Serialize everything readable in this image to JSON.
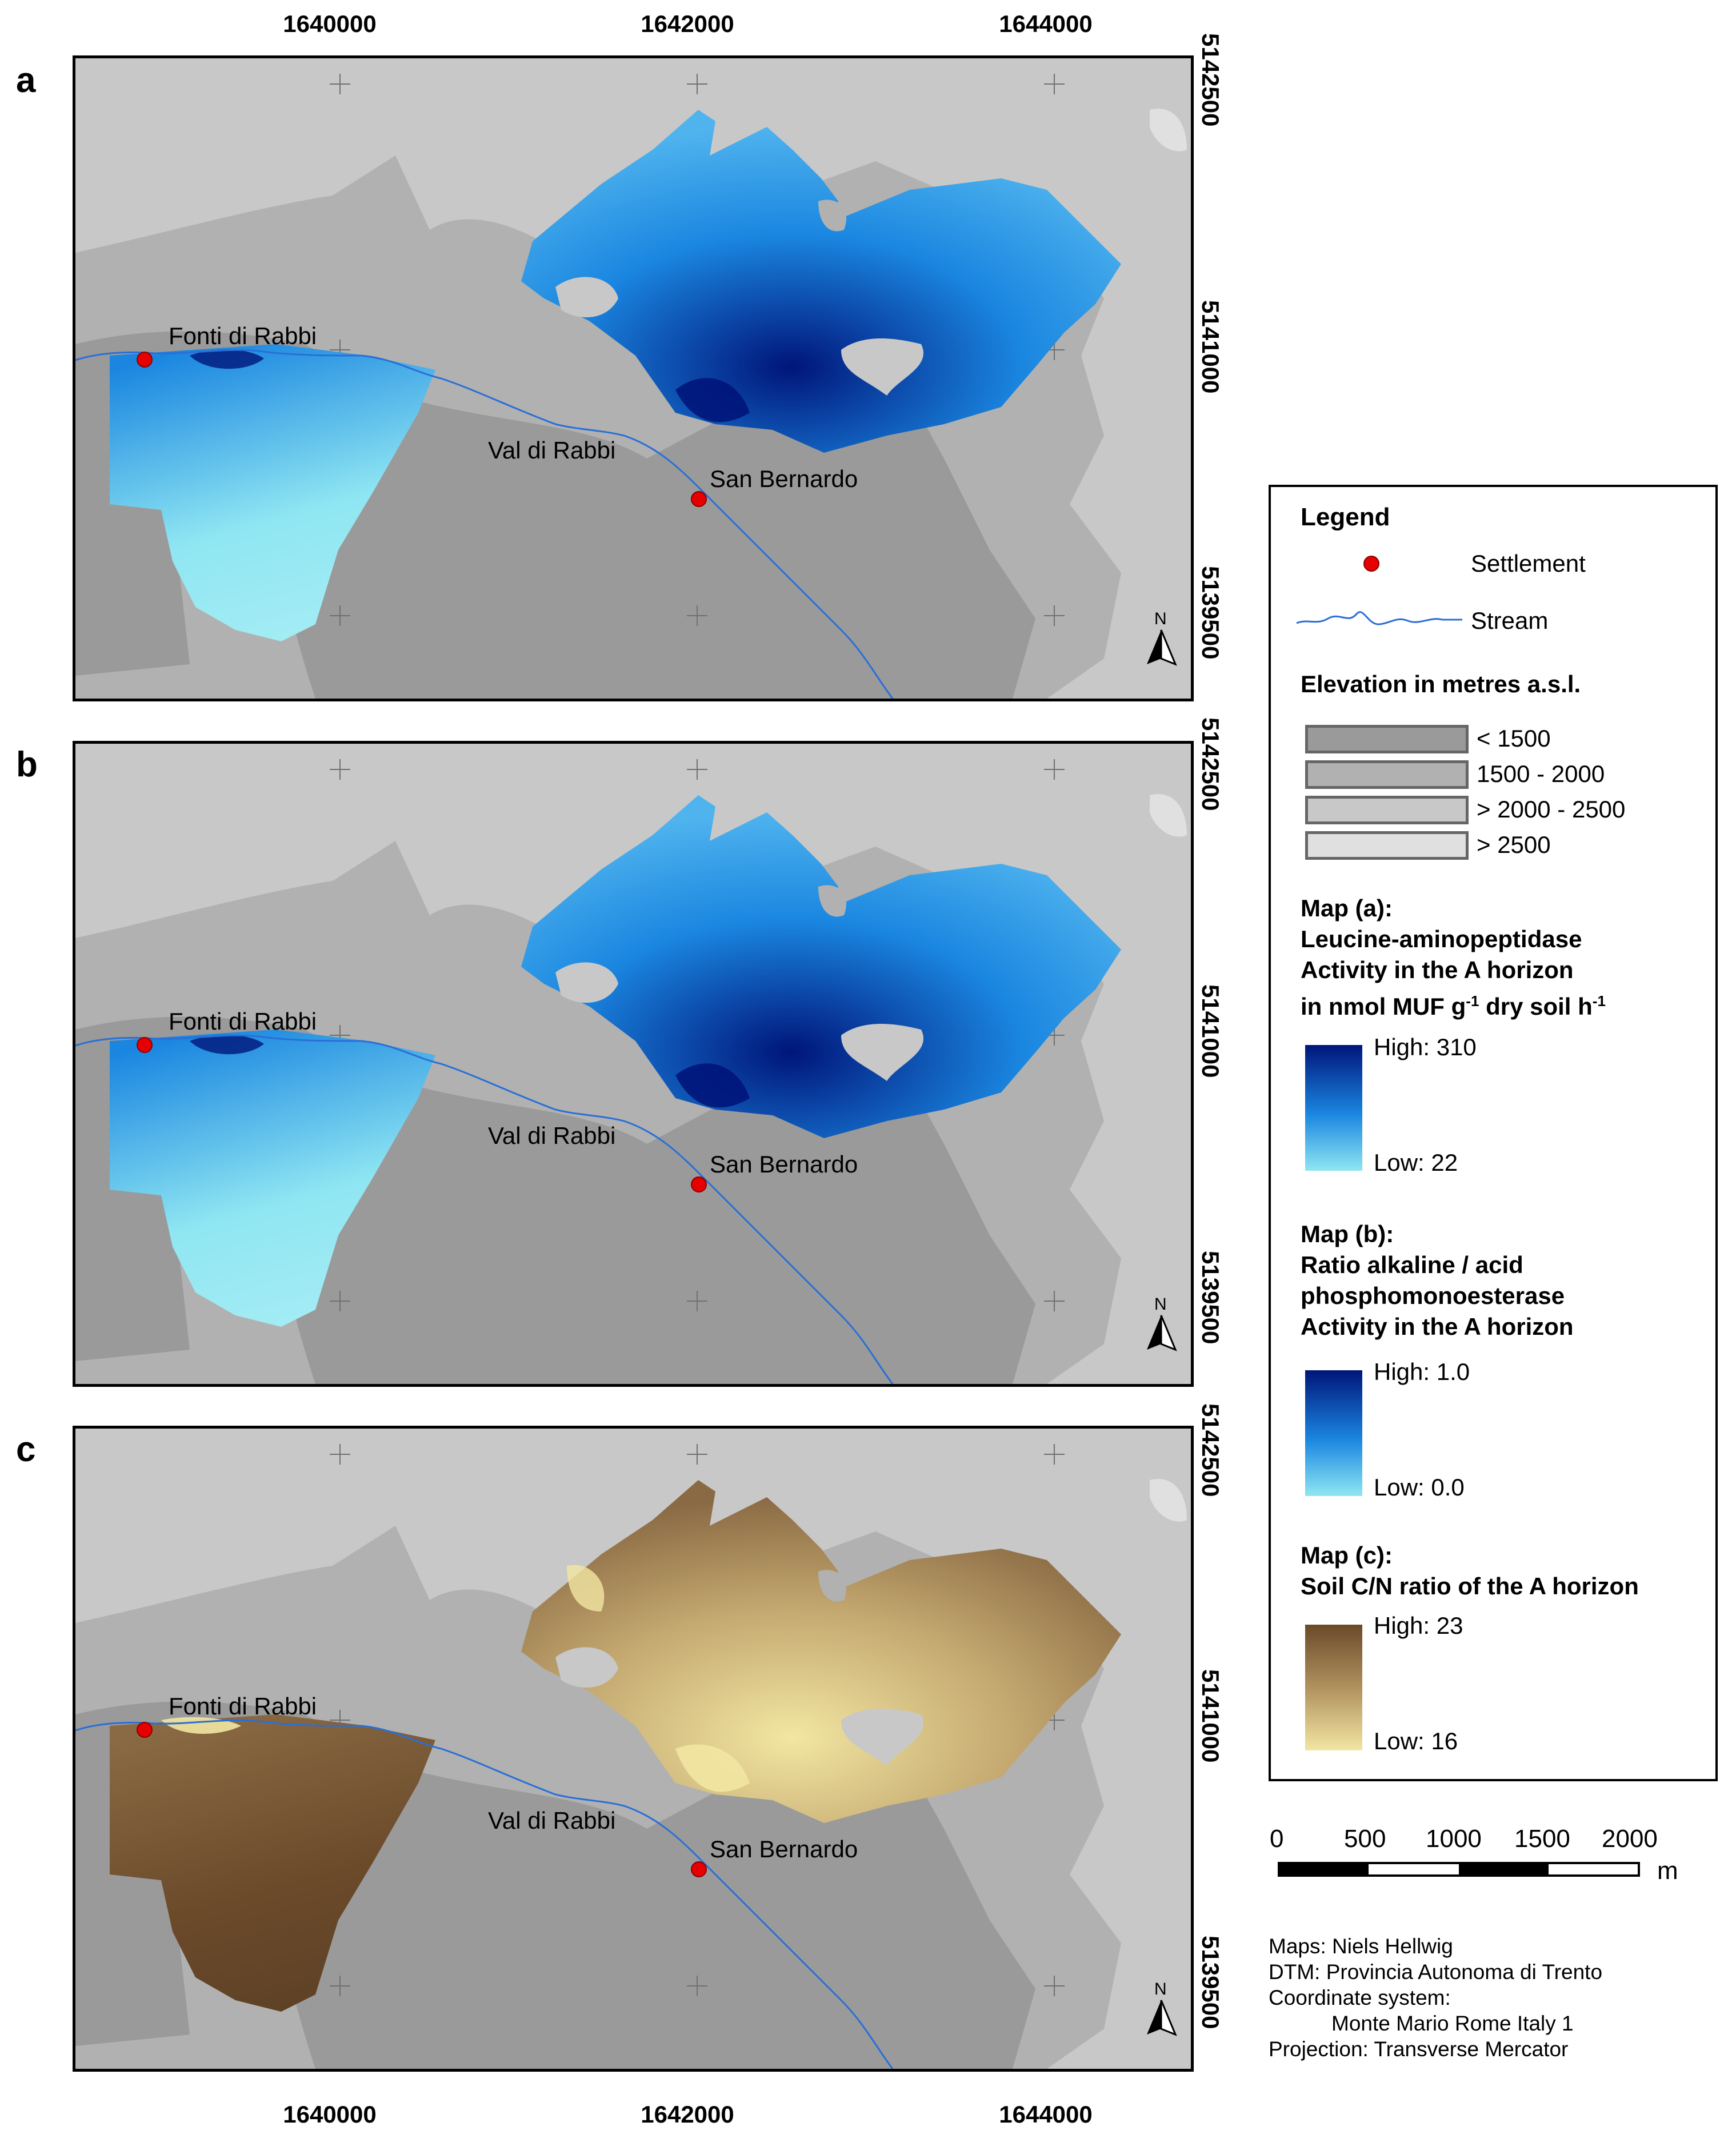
{
  "axes": {
    "x_ticks": [
      "1640000",
      "1642000",
      "1644000"
    ],
    "y_ticks": [
      "5142500",
      "5141000",
      "5139500"
    ]
  },
  "panels": [
    {
      "label": "a",
      "ramp": "blue"
    },
    {
      "label": "b",
      "ramp": "blue"
    },
    {
      "label": "c",
      "ramp": "brown"
    }
  ],
  "places": {
    "fonti": "Fonti di Rabbi",
    "valley": "Val di Rabbi",
    "sanbernardo": "San Bernardo"
  },
  "north_label": "N",
  "legend": {
    "title": "Legend",
    "settlement": "Settlement",
    "stream": "Stream",
    "elevation_title": "Elevation in metres a.s.l.",
    "elevation_classes": [
      {
        "label": "< 1500",
        "color": "#9a9a9a"
      },
      {
        "label": "1500 - 2000",
        "color": "#b1b1b1"
      },
      {
        "label": "> 2000 - 2500",
        "color": "#c8c8c8"
      },
      {
        "label": "> 2500",
        "color": "#e0e0e0"
      }
    ],
    "map_a": {
      "heading": "Map (a):",
      "line1": "Leucine-aminopeptidase",
      "line2": "Activity in the A horizon",
      "line3_pre": "in nmol MUF g",
      "line3_sup1": "-1",
      "line3_mid": " dry soil h",
      "line3_sup2": "-1",
      "high": "High: 310",
      "low": "Low: 22"
    },
    "map_b": {
      "heading": "Map (b):",
      "line1": "Ratio alkaline / acid",
      "line2": "phosphomonoesterase",
      "line3": "Activity in the A horizon",
      "high": "High: 1.0",
      "low": "Low: 0.0"
    },
    "map_c": {
      "heading": "Map (c):",
      "line1": "Soil C/N ratio of the A horizon",
      "high": "High: 23",
      "low": "Low: 16"
    }
  },
  "scalebar": {
    "labels": [
      "0",
      "500",
      "1000",
      "1500",
      "2000"
    ],
    "unit": "m"
  },
  "credits": {
    "line1": "Maps: Niels Hellwig",
    "line2": "DTM:  Provincia Autonoma di Trento",
    "line3": "Coordinate system:",
    "line4": "Monte Mario Rome Italy 1",
    "line5": "Projection: Transverse Mercator"
  },
  "colors": {
    "settlement": "#e60000",
    "stream": "#2a6fd6",
    "blue_high": "#00157a",
    "blue_mid": "#1a86e0",
    "blue_low": "#8fe6f2",
    "brown_high": "#6b4a2a",
    "brown_low": "#f2e6a2"
  }
}
